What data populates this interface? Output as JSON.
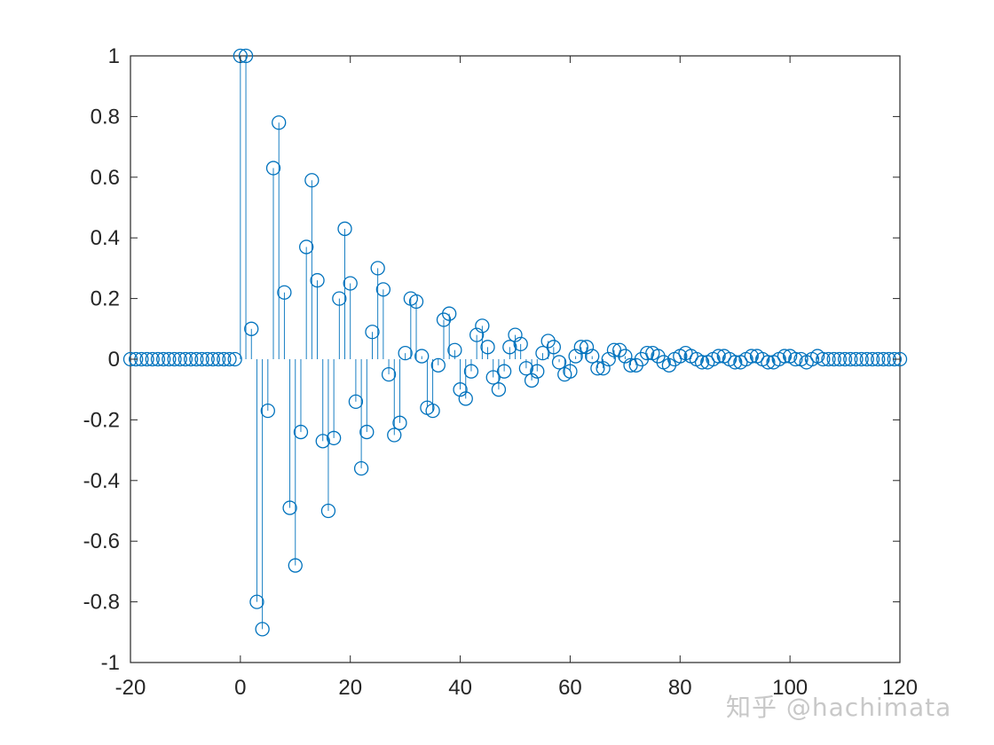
{
  "chart_data": {
    "type": "stem",
    "title": "",
    "xlabel": "",
    "ylabel": "",
    "xlim": [
      -20,
      120
    ],
    "ylim": [
      -1,
      1
    ],
    "xticks": [
      -20,
      0,
      20,
      40,
      60,
      80,
      100,
      120
    ],
    "yticks": [
      -1,
      -0.8,
      -0.6,
      -0.4,
      -0.2,
      0,
      0.2,
      0.4,
      0.6,
      0.8,
      1
    ],
    "grid": false,
    "marker": "circle-open",
    "color": "#0072BD",
    "x": [
      -20,
      -19,
      -18,
      -17,
      -16,
      -15,
      -14,
      -13,
      -12,
      -11,
      -10,
      -9,
      -8,
      -7,
      -6,
      -5,
      -4,
      -3,
      -2,
      -1,
      0,
      1,
      2,
      3,
      4,
      5,
      6,
      7,
      8,
      9,
      10,
      11,
      12,
      13,
      14,
      15,
      16,
      17,
      18,
      19,
      20,
      21,
      22,
      23,
      24,
      25,
      26,
      27,
      28,
      29,
      30,
      31,
      32,
      33,
      34,
      35,
      36,
      37,
      38,
      39,
      40,
      41,
      42,
      43,
      44,
      45,
      46,
      47,
      48,
      49,
      50,
      51,
      52,
      53,
      54,
      55,
      56,
      57,
      58,
      59,
      60,
      61,
      62,
      63,
      64,
      65,
      66,
      67,
      68,
      69,
      70,
      71,
      72,
      73,
      74,
      75,
      76,
      77,
      78,
      79,
      80,
      81,
      82,
      83,
      84,
      85,
      86,
      87,
      88,
      89,
      90,
      91,
      92,
      93,
      94,
      95,
      96,
      97,
      98,
      99,
      100,
      101,
      102,
      103,
      104,
      105,
      106,
      107,
      108,
      109,
      110,
      111,
      112,
      113,
      114,
      115,
      116,
      117,
      118,
      119,
      120
    ],
    "y": [
      0,
      0,
      0,
      0,
      0,
      0,
      0,
      0,
      0,
      0,
      0,
      0,
      0,
      0,
      0,
      0,
      0,
      0,
      0,
      0,
      1,
      1,
      0.1,
      -0.8,
      -0.89,
      -0.17,
      0.63,
      0.78,
      0.22,
      -0.49,
      -0.68,
      -0.24,
      0.37,
      0.59,
      0.26,
      -0.27,
      -0.5,
      -0.26,
      0.2,
      0.43,
      0.25,
      -0.14,
      -0.36,
      -0.24,
      0.09,
      0.3,
      0.23,
      -0.05,
      -0.25,
      -0.21,
      0.02,
      0.2,
      0.19,
      0.01,
      -0.16,
      -0.17,
      -0.02,
      0.13,
      0.15,
      0.03,
      -0.1,
      -0.13,
      -0.04,
      0.08,
      0.11,
      0.04,
      -0.06,
      -0.1,
      -0.04,
      0.04,
      0.08,
      0.05,
      -0.03,
      -0.07,
      -0.04,
      0.02,
      0.06,
      0.04,
      -0.01,
      -0.05,
      -0.04,
      0.01,
      0.04,
      0.04,
      0.01,
      -0.03,
      -0.03,
      0,
      0.03,
      0.03,
      0.01,
      -0.02,
      -0.02,
      0,
      0.02,
      0.02,
      0.01,
      -0.01,
      -0.02,
      0,
      0.01,
      0.02,
      0.01,
      0,
      -0.01,
      -0.01,
      0,
      0.01,
      0.01,
      0,
      -0.01,
      -0.01,
      0,
      0.01,
      0.01,
      0,
      -0.01,
      -0.01,
      0,
      0.01,
      0.01,
      0,
      0,
      -0.01,
      0,
      0.01,
      0,
      0,
      0,
      0,
      0,
      0,
      0,
      0,
      0,
      0,
      0,
      0,
      0,
      0,
      0
    ]
  },
  "watermark": "知乎 @hachimata"
}
